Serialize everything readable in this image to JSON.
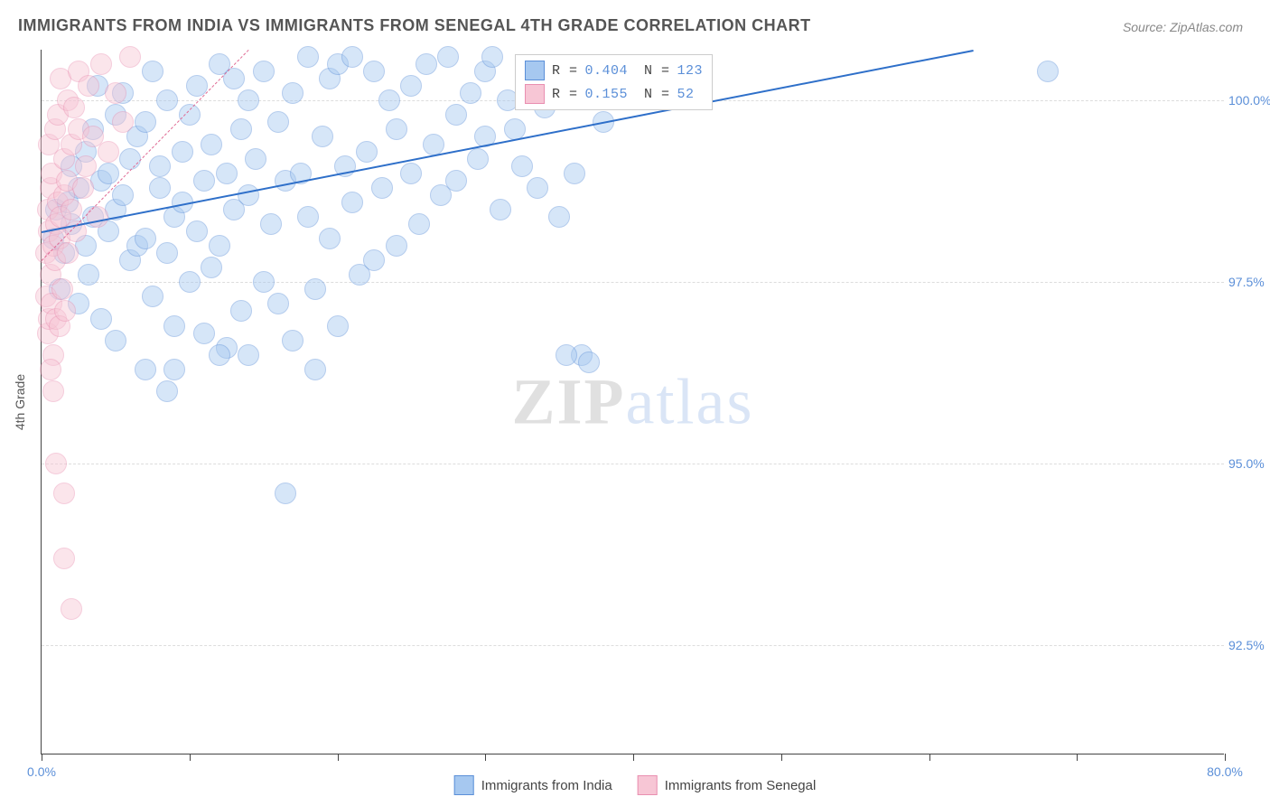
{
  "title": "IMMIGRANTS FROM INDIA VS IMMIGRANTS FROM SENEGAL 4TH GRADE CORRELATION CHART",
  "source_label": "Source: ZipAtlas.com",
  "watermark": {
    "zip": "ZIP",
    "atlas": "atlas"
  },
  "chart": {
    "type": "scatter",
    "background_color": "#ffffff",
    "grid_color": "#dddddd",
    "axis_color": "#444444",
    "label_fontsize": 14,
    "label_color": "#555555",
    "tick_label_color": "#5b8fd8",
    "ylabel": "4th Grade",
    "xlim": [
      0,
      80
    ],
    "ylim": [
      91,
      100.7
    ],
    "xticks": [
      0,
      10,
      20,
      30,
      40,
      50,
      60,
      70,
      80
    ],
    "xtick_labels": {
      "0": "0.0%",
      "80": "80.0%"
    },
    "yticks": [
      92.5,
      95.0,
      97.5,
      100.0
    ],
    "ytick_labels": [
      "92.5%",
      "95.0%",
      "97.5%",
      "100.0%"
    ],
    "point_radius": 11,
    "point_opacity": 0.45,
    "series": [
      {
        "name": "Immigrants from India",
        "legend_label": "Immigrants from India",
        "color_fill": "#a6c8f0",
        "color_stroke": "#5b8fd8",
        "R_label": "R =",
        "R_value": "0.404",
        "N_label": "N =",
        "N_value": "123",
        "trend": {
          "x1": 0,
          "y1": 98.2,
          "x2": 63,
          "y2": 100.7,
          "color": "#2e6fc9",
          "width": 2,
          "dash": false
        },
        "points": [
          [
            0.8,
            98.1
          ],
          [
            1.0,
            98.5
          ],
          [
            1.2,
            97.4
          ],
          [
            1.5,
            97.9
          ],
          [
            1.8,
            98.6
          ],
          [
            2.0,
            98.3
          ],
          [
            2.0,
            99.1
          ],
          [
            2.5,
            97.2
          ],
          [
            2.5,
            98.8
          ],
          [
            3.0,
            98.0
          ],
          [
            3.0,
            99.3
          ],
          [
            3.2,
            97.6
          ],
          [
            3.5,
            98.4
          ],
          [
            3.5,
            99.6
          ],
          [
            3.8,
            100.2
          ],
          [
            4.0,
            98.9
          ],
          [
            4.0,
            97.0
          ],
          [
            4.5,
            98.2
          ],
          [
            4.5,
            99.0
          ],
          [
            5.0,
            98.5
          ],
          [
            5.0,
            99.8
          ],
          [
            5.0,
            96.7
          ],
          [
            5.5,
            98.7
          ],
          [
            5.5,
            100.1
          ],
          [
            6.0,
            99.2
          ],
          [
            6.0,
            97.8
          ],
          [
            6.5,
            98.0
          ],
          [
            6.5,
            99.5
          ],
          [
            7.0,
            98.1
          ],
          [
            7.0,
            99.7
          ],
          [
            7.5,
            100.4
          ],
          [
            7.5,
            97.3
          ],
          [
            8.0,
            98.8
          ],
          [
            8.0,
            99.1
          ],
          [
            8.5,
            97.9
          ],
          [
            8.5,
            100.0
          ],
          [
            9.0,
            98.4
          ],
          [
            9.0,
            96.9
          ],
          [
            9.5,
            99.3
          ],
          [
            9.5,
            98.6
          ],
          [
            10.0,
            97.5
          ],
          [
            10.0,
            99.8
          ],
          [
            10.5,
            98.2
          ],
          [
            10.5,
            100.2
          ],
          [
            11.0,
            98.9
          ],
          [
            11.0,
            96.8
          ],
          [
            11.5,
            99.4
          ],
          [
            11.5,
            97.7
          ],
          [
            12.0,
            100.5
          ],
          [
            12.0,
            98.0
          ],
          [
            12.5,
            99.0
          ],
          [
            12.5,
            96.6
          ],
          [
            13.0,
            100.3
          ],
          [
            13.0,
            98.5
          ],
          [
            13.5,
            99.6
          ],
          [
            13.5,
            97.1
          ],
          [
            14.0,
            98.7
          ],
          [
            14.0,
            100.0
          ],
          [
            14.5,
            99.2
          ],
          [
            15.0,
            100.4
          ],
          [
            15.0,
            97.5
          ],
          [
            15.5,
            98.3
          ],
          [
            16.0,
            99.7
          ],
          [
            16.0,
            97.2
          ],
          [
            16.5,
            98.9
          ],
          [
            17.0,
            100.1
          ],
          [
            17.0,
            96.7
          ],
          [
            17.5,
            99.0
          ],
          [
            18.0,
            98.4
          ],
          [
            18.0,
            100.6
          ],
          [
            18.5,
            97.4
          ],
          [
            19.0,
            99.5
          ],
          [
            19.5,
            100.3
          ],
          [
            19.5,
            98.1
          ],
          [
            20.0,
            96.9
          ],
          [
            20.0,
            100.5
          ],
          [
            20.5,
            99.1
          ],
          [
            21.0,
            98.6
          ],
          [
            21.0,
            100.6
          ],
          [
            21.5,
            97.6
          ],
          [
            22.0,
            99.3
          ],
          [
            22.5,
            100.4
          ],
          [
            22.5,
            97.8
          ],
          [
            23.0,
            98.8
          ],
          [
            23.5,
            100.0
          ],
          [
            24.0,
            99.6
          ],
          [
            24.0,
            98.0
          ],
          [
            25.0,
            100.2
          ],
          [
            25.0,
            99.0
          ],
          [
            25.5,
            98.3
          ],
          [
            26.0,
            100.5
          ],
          [
            26.5,
            99.4
          ],
          [
            27.0,
            98.7
          ],
          [
            27.5,
            100.6
          ],
          [
            28.0,
            99.8
          ],
          [
            28.0,
            98.9
          ],
          [
            29.0,
            100.1
          ],
          [
            29.5,
            99.2
          ],
          [
            30.0,
            100.4
          ],
          [
            30.0,
            99.5
          ],
          [
            31.0,
            98.5
          ],
          [
            31.5,
            100.0
          ],
          [
            32.0,
            99.6
          ],
          [
            32.5,
            99.1
          ],
          [
            33.0,
            100.3
          ],
          [
            33.5,
            98.8
          ],
          [
            34.0,
            99.9
          ],
          [
            35.0,
            98.4
          ],
          [
            35.0,
            100.2
          ],
          [
            36.0,
            99.0
          ],
          [
            36.5,
            96.5
          ],
          [
            37.0,
            96.4
          ],
          [
            38.0,
            99.7
          ],
          [
            16.5,
            94.6
          ],
          [
            7.0,
            96.3
          ],
          [
            9.0,
            96.3
          ],
          [
            12.0,
            96.5
          ],
          [
            14.0,
            96.5
          ],
          [
            18.5,
            96.3
          ],
          [
            8.5,
            96.0
          ],
          [
            35.5,
            96.5
          ],
          [
            68.0,
            100.4
          ],
          [
            30.5,
            100.6
          ]
        ]
      },
      {
        "name": "Immigrants from Senegal",
        "legend_label": "Immigrants from Senegal",
        "color_fill": "#f7c6d5",
        "color_stroke": "#e98fb0",
        "R_label": "R =",
        "R_value": "0.155",
        "N_label": "N =",
        "N_value": "52",
        "trend": {
          "x1": 0,
          "y1": 97.8,
          "x2": 14,
          "y2": 100.7,
          "color": "#e06b94",
          "width": 1.5,
          "dash": true
        },
        "points": [
          [
            0.3,
            97.3
          ],
          [
            0.3,
            97.9
          ],
          [
            0.4,
            98.5
          ],
          [
            0.4,
            96.8
          ],
          [
            0.5,
            97.0
          ],
          [
            0.5,
            98.2
          ],
          [
            0.5,
            99.4
          ],
          [
            0.6,
            97.6
          ],
          [
            0.6,
            98.8
          ],
          [
            0.7,
            97.2
          ],
          [
            0.7,
            99.0
          ],
          [
            0.8,
            98.0
          ],
          [
            0.8,
            96.5
          ],
          [
            0.9,
            97.8
          ],
          [
            0.9,
            99.6
          ],
          [
            1.0,
            98.3
          ],
          [
            1.0,
            97.0
          ],
          [
            1.1,
            98.6
          ],
          [
            1.1,
            99.8
          ],
          [
            1.2,
            98.1
          ],
          [
            1.2,
            96.9
          ],
          [
            1.3,
            100.3
          ],
          [
            1.3,
            98.4
          ],
          [
            1.4,
            97.4
          ],
          [
            1.5,
            99.2
          ],
          [
            1.5,
            98.7
          ],
          [
            1.6,
            97.1
          ],
          [
            1.7,
            98.9
          ],
          [
            1.8,
            100.0
          ],
          [
            1.8,
            97.9
          ],
          [
            2.0,
            98.5
          ],
          [
            2.0,
            99.4
          ],
          [
            2.2,
            99.9
          ],
          [
            2.3,
            98.2
          ],
          [
            2.5,
            99.6
          ],
          [
            2.5,
            100.4
          ],
          [
            2.8,
            98.8
          ],
          [
            3.0,
            99.1
          ],
          [
            3.2,
            100.2
          ],
          [
            3.5,
            99.5
          ],
          [
            3.8,
            98.4
          ],
          [
            4.0,
            100.5
          ],
          [
            4.5,
            99.3
          ],
          [
            5.0,
            100.1
          ],
          [
            5.5,
            99.7
          ],
          [
            6.0,
            100.6
          ],
          [
            1.0,
            95.0
          ],
          [
            1.5,
            94.6
          ],
          [
            1.5,
            93.7
          ],
          [
            2.0,
            93.0
          ],
          [
            0.6,
            96.3
          ],
          [
            0.8,
            96.0
          ]
        ]
      }
    ],
    "legend_bottom": [
      {
        "label": "Immigrants from India",
        "fill": "#a6c8f0",
        "stroke": "#5b8fd8"
      },
      {
        "label": "Immigrants from Senegal",
        "fill": "#f7c6d5",
        "stroke": "#e98fb0"
      }
    ]
  }
}
